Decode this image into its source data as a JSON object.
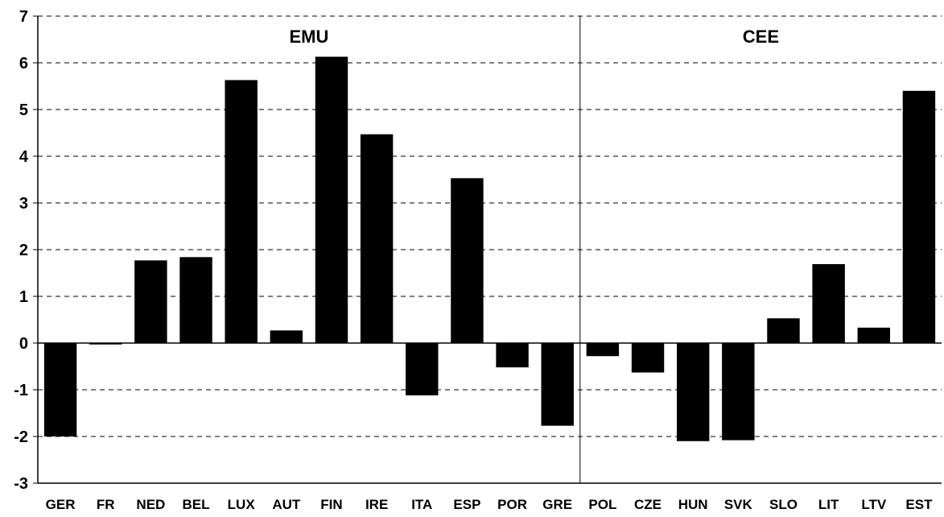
{
  "chart_data": {
    "type": "bar",
    "categories": [
      "GER",
      "FR",
      "NED",
      "BEL",
      "LUX",
      "AUT",
      "FIN",
      "IRE",
      "ITA",
      "ESP",
      "POR",
      "GRE",
      "POL",
      "CZE",
      "HUN",
      "SVK",
      "SLO",
      "LIT",
      "LTV",
      "EST"
    ],
    "values": [
      -2.0,
      -0.03,
      1.77,
      1.84,
      5.63,
      0.27,
      6.13,
      4.47,
      -1.12,
      3.53,
      -0.52,
      -1.77,
      -0.28,
      -0.63,
      -2.1,
      -2.08,
      0.53,
      1.69,
      0.33,
      5.4
    ],
    "ylim": [
      -3,
      7
    ],
    "yticks": [
      "-3",
      "-2",
      "-1",
      "0",
      "1",
      "2",
      "3",
      "4",
      "5",
      "6",
      "7"
    ],
    "grid": true,
    "groups": [
      {
        "label": "EMU",
        "start": 0,
        "end": 11
      },
      {
        "label": "CEE",
        "start": 12,
        "end": 19
      }
    ],
    "bar_color": "#000000"
  }
}
